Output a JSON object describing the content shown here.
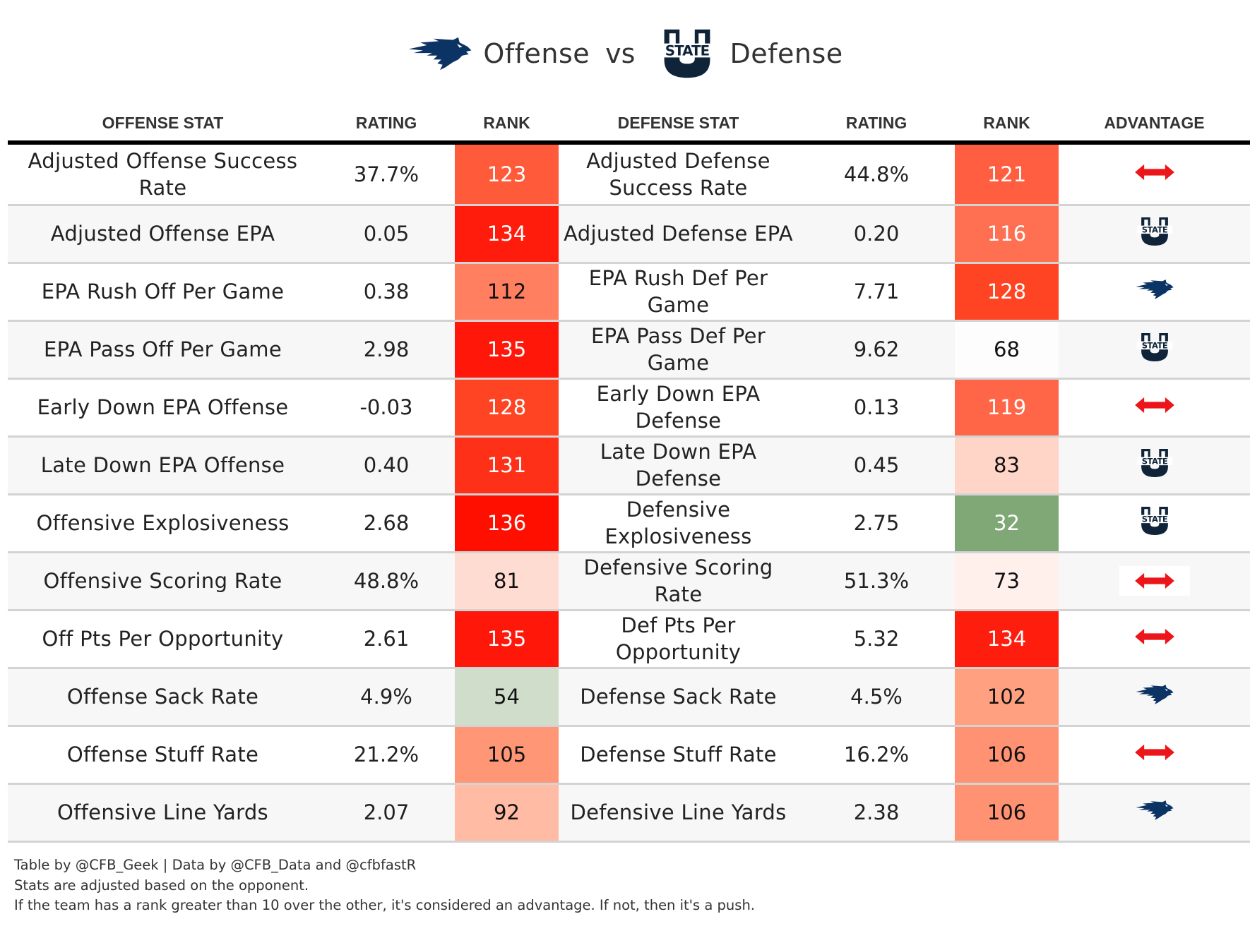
{
  "title": {
    "left_team_logo": "nevada-wolf-pack-logo",
    "offense_label": "Offense",
    "vs_label": "vs",
    "right_team_logo": "utah-state-logo",
    "defense_label": "Defense"
  },
  "columns": {
    "offense_stat": "OFFENSE STAT",
    "offense_rating": "RATING",
    "offense_rank": "RANK",
    "defense_stat": "DEFENSE STAT",
    "defense_rating": "RATING",
    "defense_rank": "RANK",
    "advantage": "ADVANTAGE"
  },
  "colors": {
    "nevada_navy": "#003366",
    "usu_navy": "#0f2439",
    "push_red": "#e8161b",
    "header_rule": "#000000",
    "row_alt": "#f7f7f7",
    "divider": "#d3d3d3"
  },
  "rows": [
    {
      "off_stat": "Adjusted Offense Success Rate",
      "off_rating": "37.7%",
      "off_rank": "123",
      "off_rank_color": "#ff5a3a",
      "off_rank_text": "#ffffff",
      "def_stat": "Adjusted Defense Success Rate",
      "def_rating": "44.8%",
      "def_rank": "121",
      "def_rank_color": "#ff5e40",
      "def_rank_text": "#ffffff",
      "advantage": "push-arrow-icon"
    },
    {
      "off_stat": "Adjusted Offense EPA",
      "off_rating": "0.05",
      "off_rank": "134",
      "off_rank_color": "#ff1c0c",
      "off_rank_text": "#ffffff",
      "def_stat": "Adjusted Defense EPA",
      "def_rating": "0.20",
      "def_rank": "116",
      "def_rank_color": "#ff7052",
      "def_rank_text": "#ffffff",
      "advantage": "utah-state-logo"
    },
    {
      "off_stat": "EPA Rush Off Per Game",
      "off_rating": "0.38",
      "off_rank": "112",
      "off_rank_color": "#ff7f60",
      "off_rank_text": "#111111",
      "def_stat": "EPA Rush Def Per Game",
      "def_rating": "7.71",
      "def_rank": "128",
      "def_rank_color": "#ff4424",
      "def_rank_text": "#ffffff",
      "advantage": "nevada-wolf-pack-logo"
    },
    {
      "off_stat": "EPA Pass Off Per Game",
      "off_rating": "2.98",
      "off_rank": "135",
      "off_rank_color": "#ff180a",
      "off_rank_text": "#ffffff",
      "def_stat": "EPA Pass Def Per Game",
      "def_rating": "9.62",
      "def_rank": "68",
      "def_rank_color": "#fdfdfd",
      "def_rank_text": "#111111",
      "advantage": "utah-state-logo"
    },
    {
      "off_stat": "Early Down EPA Offense",
      "off_rating": "-0.03",
      "off_rank": "128",
      "off_rank_color": "#ff4424",
      "off_rank_text": "#ffffff",
      "def_stat": "Early Down EPA Defense",
      "def_rating": "0.13",
      "def_rank": "119",
      "def_rank_color": "#ff6648",
      "def_rank_text": "#ffffff",
      "advantage": "push-arrow-icon"
    },
    {
      "off_stat": "Late Down EPA Offense",
      "off_rating": "0.40",
      "off_rank": "131",
      "off_rank_color": "#ff3018",
      "off_rank_text": "#ffffff",
      "def_stat": "Late Down EPA Defense",
      "def_rating": "0.45",
      "def_rank": "83",
      "def_rank_color": "#ffd5c8",
      "def_rank_text": "#111111",
      "advantage": "utah-state-logo"
    },
    {
      "off_stat": "Offensive Explosiveness",
      "off_rating": "2.68",
      "off_rank": "136",
      "off_rank_color": "#ff0f00",
      "off_rank_text": "#ffffff",
      "def_stat": "Defensive Explosiveness",
      "def_rating": "2.75",
      "def_rank": "32",
      "def_rank_color": "#80a876",
      "def_rank_text": "#ffffff",
      "advantage": "utah-state-logo"
    },
    {
      "off_stat": "Offensive Scoring Rate",
      "off_rating": "48.8%",
      "off_rank": "81",
      "off_rank_color": "#ffdcd2",
      "off_rank_text": "#111111",
      "def_stat": "Defensive Scoring Rate",
      "def_rating": "51.3%",
      "def_rank": "73",
      "def_rank_color": "#fff0ec",
      "def_rank_text": "#111111",
      "advantage": "push-arrow-icon"
    },
    {
      "off_stat": "Off Pts Per Opportunity",
      "off_rating": "2.61",
      "off_rank": "135",
      "off_rank_color": "#ff180a",
      "off_rank_text": "#ffffff",
      "def_stat": "Def Pts Per Opportunity",
      "def_rating": "5.32",
      "def_rank": "134",
      "def_rank_color": "#ff1e0e",
      "def_rank_text": "#ffffff",
      "advantage": "push-arrow-icon"
    },
    {
      "off_stat": "Offense Sack Rate",
      "off_rating": "4.9%",
      "off_rank": "54",
      "off_rank_color": "#cfddca",
      "off_rank_text": "#111111",
      "def_stat": "Defense Sack Rate",
      "def_rating": "4.5%",
      "def_rank": "102",
      "def_rank_color": "#ffa080",
      "def_rank_text": "#111111",
      "advantage": "nevada-wolf-pack-logo"
    },
    {
      "off_stat": "Offense Stuff Rate",
      "off_rating": "21.2%",
      "off_rank": "105",
      "off_rank_color": "#ff9676",
      "off_rank_text": "#111111",
      "def_stat": "Defense Stuff Rate",
      "def_rating": "16.2%",
      "def_rank": "106",
      "def_rank_color": "#ff9272",
      "def_rank_text": "#111111",
      "advantage": "push-arrow-icon"
    },
    {
      "off_stat": "Offensive Line Yards",
      "off_rating": "2.07",
      "off_rank": "92",
      "off_rank_color": "#ffbba4",
      "off_rank_text": "#111111",
      "def_stat": "Defensive Line Yards",
      "def_rating": "2.38",
      "def_rank": "106",
      "def_rank_color": "#ff9272",
      "def_rank_text": "#111111",
      "advantage": "nevada-wolf-pack-logo"
    }
  ],
  "footer": {
    "line1": "Table by @CFB_Geek | Data by @CFB_Data and @cfbfastR",
    "line2": "Stats are adjusted based on the opponent.",
    "line3": "If the team has a rank greater than 10 over the other, it's considered an advantage. If not, then it's a push."
  }
}
